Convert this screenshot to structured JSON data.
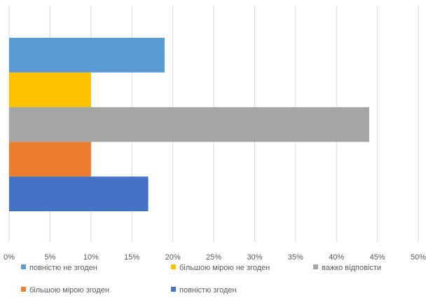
{
  "chart_data": {
    "type": "bar",
    "orientation": "horizontal",
    "title": "",
    "xlabel": "",
    "ylabel": "",
    "xlim": [
      0,
      50
    ],
    "x_ticks": [
      "0%",
      "5%",
      "10%",
      "15%",
      "20%",
      "25%",
      "30%",
      "35%",
      "40%",
      "45%",
      "50%"
    ],
    "grid": true,
    "legend_position": "bottom",
    "series": [
      {
        "name": "повністю не згоден",
        "value": 19,
        "color": "#5B9BD5"
      },
      {
        "name": "більшою мірою не згоден",
        "value": 10,
        "color": "#FFC000"
      },
      {
        "name": "важко відповісти",
        "value": 44,
        "color": "#A5A5A5"
      },
      {
        "name": "більшою мірою згоден",
        "value": 10,
        "color": "#ED7D31"
      },
      {
        "name": "повністю згоден",
        "value": 17,
        "color": "#4472C4"
      }
    ]
  }
}
